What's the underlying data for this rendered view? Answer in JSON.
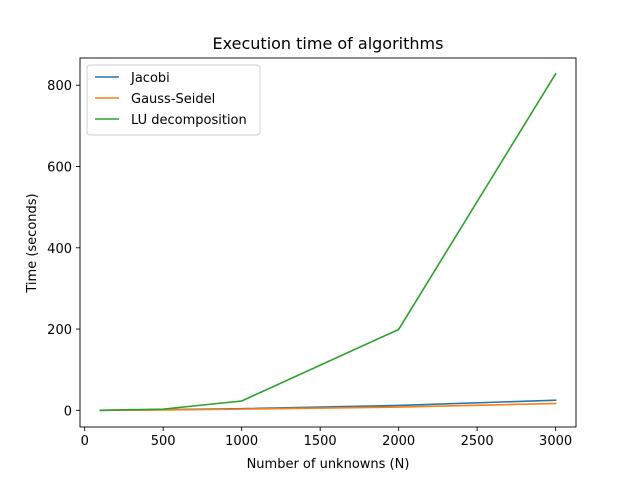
{
  "chart_data": {
    "type": "line",
    "title": "Execution time of algorithms",
    "xlabel": "Number of unknowns (N)",
    "ylabel": "Time (seconds)",
    "x": [
      100,
      500,
      1000,
      2000,
      3000
    ],
    "xlim": [
      -30,
      3130
    ],
    "ylim": [
      -41,
      867
    ],
    "xticks": [
      0,
      500,
      1000,
      1500,
      2000,
      2500,
      3000
    ],
    "yticks": [
      0,
      200,
      400,
      600,
      800
    ],
    "grid": false,
    "legend_position": "top-left",
    "series": [
      {
        "name": "Jacobi",
        "color": "#1f77b4",
        "values": [
          0.1,
          1.5,
          4,
          12,
          25
        ]
      },
      {
        "name": "Gauss-Seidel",
        "color": "#ff7f0e",
        "values": [
          0.1,
          1,
          3,
          8,
          17
        ]
      },
      {
        "name": "LU decomposition",
        "color": "#2ca02c",
        "values": [
          0.2,
          3,
          23,
          199,
          828
        ]
      }
    ]
  }
}
